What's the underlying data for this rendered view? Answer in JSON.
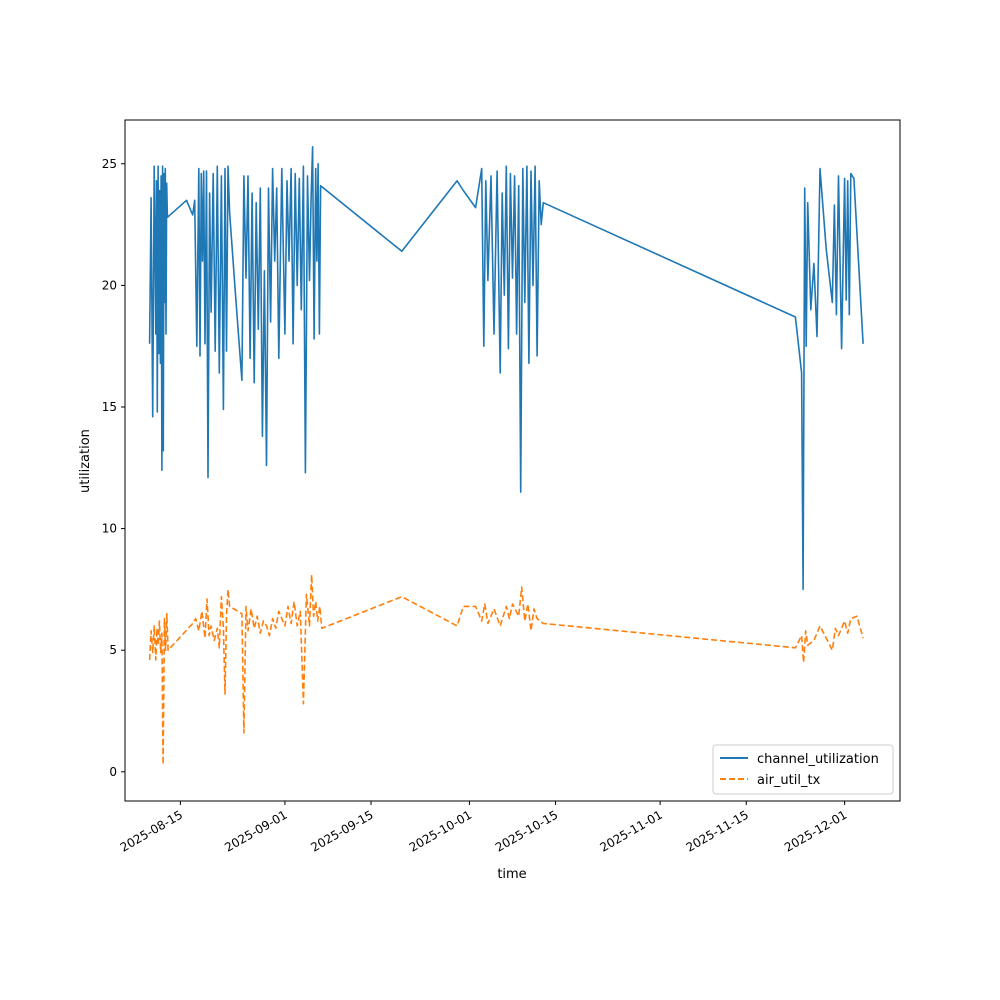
{
  "chart_data": {
    "type": "line",
    "title": "",
    "xlabel": "time",
    "ylabel": "utilization",
    "x_axis_type": "date",
    "xlim": [
      "2025-08-06",
      "2025-12-10"
    ],
    "ylim": [
      -1.2,
      26.8
    ],
    "x_ticks": [
      "2025-08-15",
      "2025-09-01",
      "2025-09-15",
      "2025-10-01",
      "2025-10-15",
      "2025-11-01",
      "2025-11-15",
      "2025-12-01"
    ],
    "y_ticks": [
      0,
      5,
      10,
      15,
      20,
      25
    ],
    "grid": false,
    "legend_position": "lower-right",
    "series": [
      {
        "name": "channel_utilization",
        "color": "#1f77b4",
        "style": "solid",
        "points": [
          [
            "2025-08-10",
            17.6
          ],
          [
            "2025-08-10",
            23.6
          ],
          [
            "2025-08-10",
            14.6
          ],
          [
            "2025-08-10",
            24.9
          ],
          [
            "2025-08-11",
            18.0
          ],
          [
            "2025-08-11",
            24.3
          ],
          [
            "2025-08-11",
            14.8
          ],
          [
            "2025-08-11",
            24.9
          ],
          [
            "2025-08-11",
            17.2
          ],
          [
            "2025-08-11",
            23.9
          ],
          [
            "2025-08-11",
            16.8
          ],
          [
            "2025-08-11",
            24.5
          ],
          [
            "2025-08-12",
            12.4
          ],
          [
            "2025-08-12",
            24.9
          ],
          [
            "2025-08-12",
            13.2
          ],
          [
            "2025-08-12",
            24.6
          ],
          [
            "2025-08-12",
            19.3
          ],
          [
            "2025-08-12",
            24.8
          ],
          [
            "2025-08-12",
            18.0
          ],
          [
            "2025-08-12",
            24.2
          ],
          [
            "2025-08-12",
            22.8
          ],
          [
            "2025-08-16",
            23.5
          ],
          [
            "2025-08-17",
            22.9
          ],
          [
            "2025-08-17",
            23.5
          ],
          [
            "2025-08-17",
            17.5
          ],
          [
            "2025-08-18",
            24.8
          ],
          [
            "2025-08-18",
            17.1
          ],
          [
            "2025-08-18",
            24.6
          ],
          [
            "2025-08-18",
            21.0
          ],
          [
            "2025-08-18",
            24.7
          ],
          [
            "2025-08-19",
            17.6
          ],
          [
            "2025-08-19",
            24.7
          ],
          [
            "2025-08-19",
            12.1
          ],
          [
            "2025-08-19",
            23.8
          ],
          [
            "2025-08-20",
            18.9
          ],
          [
            "2025-08-20",
            24.6
          ],
          [
            "2025-08-20",
            17.3
          ],
          [
            "2025-08-21",
            24.9
          ],
          [
            "2025-08-21",
            16.4
          ],
          [
            "2025-08-21",
            24.5
          ],
          [
            "2025-08-22",
            14.9
          ],
          [
            "2025-08-22",
            24.8
          ],
          [
            "2025-08-22",
            17.3
          ],
          [
            "2025-08-22",
            24.9
          ],
          [
            "2025-08-23",
            23.0
          ],
          [
            "2025-08-24",
            19.5
          ],
          [
            "2025-08-25",
            16.1
          ],
          [
            "2025-08-25",
            24.5
          ],
          [
            "2025-08-25",
            20.3
          ],
          [
            "2025-08-26",
            24.5
          ],
          [
            "2025-08-26",
            17.0
          ],
          [
            "2025-08-26",
            23.8
          ],
          [
            "2025-08-27",
            16.0
          ],
          [
            "2025-08-27",
            23.4
          ],
          [
            "2025-08-27",
            18.2
          ],
          [
            "2025-08-28",
            24.0
          ],
          [
            "2025-08-28",
            13.8
          ],
          [
            "2025-08-28",
            20.6
          ],
          [
            "2025-08-29",
            12.6
          ],
          [
            "2025-08-29",
            24.0
          ],
          [
            "2025-08-29",
            18.5
          ],
          [
            "2025-08-30",
            24.8
          ],
          [
            "2025-08-30",
            21.0
          ],
          [
            "2025-08-30",
            24.0
          ],
          [
            "2025-08-31",
            17.0
          ],
          [
            "2025-08-31",
            24.8
          ],
          [
            "2025-09-01",
            18.0
          ],
          [
            "2025-09-01",
            24.3
          ],
          [
            "2025-09-01",
            21.0
          ],
          [
            "2025-09-02",
            24.8
          ],
          [
            "2025-09-02",
            17.6
          ],
          [
            "2025-09-02",
            24.6
          ],
          [
            "2025-09-03",
            20.0
          ],
          [
            "2025-09-03",
            24.4
          ],
          [
            "2025-09-03",
            19.0
          ],
          [
            "2025-09-04",
            24.9
          ],
          [
            "2025-09-04",
            12.3
          ],
          [
            "2025-09-04",
            24.5
          ],
          [
            "2025-09-05",
            20.2
          ],
          [
            "2025-09-05",
            23.6
          ],
          [
            "2025-09-05",
            25.7
          ],
          [
            "2025-09-05",
            17.8
          ],
          [
            "2025-09-06",
            24.8
          ],
          [
            "2025-09-06",
            21.0
          ],
          [
            "2025-09-06",
            25.0
          ],
          [
            "2025-09-06",
            18.0
          ],
          [
            "2025-09-06",
            24.1
          ],
          [
            "2025-09-20",
            21.4
          ],
          [
            "2025-09-29",
            24.3
          ],
          [
            "2025-09-30",
            23.9
          ],
          [
            "2025-10-02",
            23.2
          ],
          [
            "2025-10-03",
            24.8
          ],
          [
            "2025-10-03",
            17.5
          ],
          [
            "2025-10-03",
            24.3
          ],
          [
            "2025-10-04",
            20.2
          ],
          [
            "2025-10-04",
            24.5
          ],
          [
            "2025-10-05",
            18.0
          ],
          [
            "2025-10-05",
            24.7
          ],
          [
            "2025-10-06",
            16.4
          ],
          [
            "2025-10-06",
            23.8
          ],
          [
            "2025-10-06",
            19.6
          ],
          [
            "2025-10-07",
            24.9
          ],
          [
            "2025-10-07",
            17.4
          ],
          [
            "2025-10-07",
            24.6
          ],
          [
            "2025-10-08",
            20.3
          ],
          [
            "2025-10-08",
            24.5
          ],
          [
            "2025-10-08",
            18.0
          ],
          [
            "2025-10-09",
            24.1
          ],
          [
            "2025-10-09",
            11.5
          ],
          [
            "2025-10-09",
            24.8
          ],
          [
            "2025-10-10",
            19.3
          ],
          [
            "2025-10-10",
            24.9
          ],
          [
            "2025-10-10",
            16.8
          ],
          [
            "2025-10-11",
            24.7
          ],
          [
            "2025-10-11",
            20.0
          ],
          [
            "2025-10-11",
            24.9
          ],
          [
            "2025-10-12",
            17.1
          ],
          [
            "2025-10-12",
            24.3
          ],
          [
            "2025-10-12",
            22.5
          ],
          [
            "2025-10-13",
            23.4
          ],
          [
            "2025-11-23",
            18.7
          ],
          [
            "2025-11-24",
            16.4
          ],
          [
            "2025-11-24",
            7.5
          ],
          [
            "2025-11-24",
            24.0
          ],
          [
            "2025-11-24",
            17.5
          ],
          [
            "2025-11-25",
            23.4
          ],
          [
            "2025-11-25",
            19.0
          ],
          [
            "2025-11-26",
            20.9
          ],
          [
            "2025-11-26",
            17.9
          ],
          [
            "2025-11-27",
            24.8
          ],
          [
            "2025-11-28",
            21.5
          ],
          [
            "2025-11-29",
            19.3
          ],
          [
            "2025-11-29",
            23.3
          ],
          [
            "2025-11-29",
            18.8
          ],
          [
            "2025-11-30",
            24.5
          ],
          [
            "2025-11-30",
            17.4
          ],
          [
            "2025-12-01",
            24.4
          ],
          [
            "2025-12-01",
            19.4
          ],
          [
            "2025-12-01",
            24.3
          ],
          [
            "2025-12-01",
            18.8
          ],
          [
            "2025-12-02",
            24.6
          ],
          [
            "2025-12-02",
            24.4
          ],
          [
            "2025-12-04",
            17.6
          ]
        ]
      },
      {
        "name": "air_util_tx",
        "color": "#ff7f0e",
        "style": "dashed",
        "points": [
          [
            "2025-08-10",
            4.6
          ],
          [
            "2025-08-10",
            5.8
          ],
          [
            "2025-08-10",
            4.9
          ],
          [
            "2025-08-10",
            6.0
          ],
          [
            "2025-08-11",
            4.6
          ],
          [
            "2025-08-11",
            5.9
          ],
          [
            "2025-08-11",
            5.2
          ],
          [
            "2025-08-11",
            6.2
          ],
          [
            "2025-08-11",
            4.9
          ],
          [
            "2025-08-12",
            5.7
          ],
          [
            "2025-08-12",
            0.3
          ],
          [
            "2025-08-12",
            6.3
          ],
          [
            "2025-08-12",
            5.0
          ],
          [
            "2025-08-12",
            6.5
          ],
          [
            "2025-08-13",
            5.0
          ],
          [
            "2025-08-17",
            6.1
          ],
          [
            "2025-08-17",
            6.3
          ],
          [
            "2025-08-18",
            5.8
          ],
          [
            "2025-08-18",
            6.6
          ],
          [
            "2025-08-19",
            5.5
          ],
          [
            "2025-08-19",
            7.1
          ],
          [
            "2025-08-19",
            5.6
          ],
          [
            "2025-08-20",
            6.0
          ],
          [
            "2025-08-20",
            5.4
          ],
          [
            "2025-08-21",
            5.9
          ],
          [
            "2025-08-21",
            5.1
          ],
          [
            "2025-08-21",
            7.2
          ],
          [
            "2025-08-22",
            5.9
          ],
          [
            "2025-08-22",
            3.2
          ],
          [
            "2025-08-22",
            6.4
          ],
          [
            "2025-08-22",
            7.5
          ],
          [
            "2025-08-23",
            6.8
          ],
          [
            "2025-08-25",
            6.5
          ],
          [
            "2025-08-25",
            1.6
          ],
          [
            "2025-08-25",
            6.8
          ],
          [
            "2025-08-26",
            5.8
          ],
          [
            "2025-08-26",
            6.7
          ],
          [
            "2025-08-27",
            5.9
          ],
          [
            "2025-08-27",
            6.4
          ],
          [
            "2025-08-28",
            5.7
          ],
          [
            "2025-08-28",
            6.2
          ],
          [
            "2025-08-29",
            6.0
          ],
          [
            "2025-08-29",
            5.6
          ],
          [
            "2025-08-30",
            6.3
          ],
          [
            "2025-08-30",
            5.9
          ],
          [
            "2025-08-31",
            6.6
          ],
          [
            "2025-09-01",
            6.0
          ],
          [
            "2025-09-01",
            6.8
          ],
          [
            "2025-09-02",
            6.1
          ],
          [
            "2025-09-02",
            7.0
          ],
          [
            "2025-09-03",
            6.0
          ],
          [
            "2025-09-03",
            6.6
          ],
          [
            "2025-09-04",
            2.8
          ],
          [
            "2025-09-04",
            7.3
          ],
          [
            "2025-09-05",
            6.0
          ],
          [
            "2025-09-05",
            8.1
          ],
          [
            "2025-09-05",
            6.4
          ],
          [
            "2025-09-06",
            7.0
          ],
          [
            "2025-09-06",
            6.2
          ],
          [
            "2025-09-06",
            6.8
          ],
          [
            "2025-09-07",
            5.9
          ],
          [
            "2025-09-20",
            7.2
          ],
          [
            "2025-09-29",
            6.0
          ],
          [
            "2025-09-30",
            6.8
          ],
          [
            "2025-10-02",
            6.8
          ],
          [
            "2025-10-03",
            6.2
          ],
          [
            "2025-10-03",
            6.9
          ],
          [
            "2025-10-04",
            6.1
          ],
          [
            "2025-10-05",
            6.7
          ],
          [
            "2025-10-06",
            6.0
          ],
          [
            "2025-10-07",
            6.8
          ],
          [
            "2025-10-07",
            6.3
          ],
          [
            "2025-10-08",
            6.9
          ],
          [
            "2025-10-09",
            6.4
          ],
          [
            "2025-10-09",
            7.6
          ],
          [
            "2025-10-10",
            6.2
          ],
          [
            "2025-10-10",
            6.9
          ],
          [
            "2025-10-11",
            5.8
          ],
          [
            "2025-10-11",
            6.7
          ],
          [
            "2025-10-12",
            6.3
          ],
          [
            "2025-10-13",
            6.1
          ],
          [
            "2025-11-23",
            5.1
          ],
          [
            "2025-11-24",
            5.6
          ],
          [
            "2025-11-24",
            4.5
          ],
          [
            "2025-11-24",
            5.8
          ],
          [
            "2025-11-25",
            5.2
          ],
          [
            "2025-11-26",
            5.4
          ],
          [
            "2025-11-27",
            6.0
          ],
          [
            "2025-11-29",
            5.0
          ],
          [
            "2025-11-29",
            5.9
          ],
          [
            "2025-11-30",
            5.6
          ],
          [
            "2025-12-01",
            6.2
          ],
          [
            "2025-12-01",
            5.7
          ],
          [
            "2025-12-02",
            6.3
          ],
          [
            "2025-12-03",
            6.4
          ],
          [
            "2025-12-04",
            5.5
          ]
        ]
      }
    ]
  }
}
